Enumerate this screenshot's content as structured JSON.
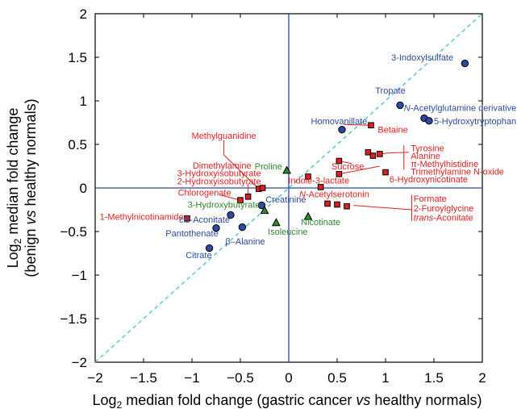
{
  "chart_data": {
    "type": "scatter",
    "title": "",
    "xlabel": {
      "prefix": "Log",
      "sub": "2",
      "main": " median fold change (gastric cancer ",
      "italic": "vs",
      "suffix": " healthy normals)"
    },
    "ylabel": {
      "line1_prefix": "Log",
      "line1_sub": "2",
      "line1_main": " median fold change",
      "line2_prefix": "(benign ",
      "line2_italic": "vs",
      "line2_suffix": " healthy normals)"
    },
    "xlim": [
      -2,
      2
    ],
    "ylim": [
      -2,
      2
    ],
    "xticks": [
      -2,
      -1.5,
      -1,
      -0.5,
      0,
      0.5,
      1,
      1.5,
      2
    ],
    "yticks": [
      -2,
      -1.5,
      -1,
      -0.5,
      0,
      0.5,
      1,
      1.5,
      2
    ],
    "xtick_labels": [
      "−2",
      "−1.5",
      "−1",
      "−0.5",
      "0",
      "0.5",
      "1",
      "1.5",
      "2"
    ],
    "ytick_labels": [
      "−2",
      "−1.5",
      "−1",
      "−0.5",
      "0",
      "0.5",
      "1",
      "1.5",
      "2"
    ],
    "colors": {
      "blue": "#2d4b9e",
      "red": "#e02020",
      "green": "#2e8b2e",
      "diag": "#55c6c6",
      "axis_line": "#2d4b9e"
    },
    "diagonal": true,
    "points": [
      {
        "x": 1.82,
        "y": 1.43,
        "marker": "circle",
        "color": "blue"
      },
      {
        "x": 1.15,
        "y": 0.95,
        "marker": "circle",
        "color": "blue"
      },
      {
        "x": 1.4,
        "y": 0.8,
        "marker": "circle",
        "color": "blue"
      },
      {
        "x": 1.45,
        "y": 0.77,
        "marker": "circle",
        "color": "blue"
      },
      {
        "x": 0.55,
        "y": 0.67,
        "marker": "circle",
        "color": "blue"
      },
      {
        "x": 0.85,
        "y": 0.72,
        "marker": "square",
        "color": "red"
      },
      {
        "x": 0.82,
        "y": 0.41,
        "marker": "square",
        "color": "red"
      },
      {
        "x": 0.87,
        "y": 0.37,
        "marker": "square",
        "color": "red"
      },
      {
        "x": 0.94,
        "y": 0.39,
        "marker": "square",
        "color": "red"
      },
      {
        "x": 0.52,
        "y": 0.31,
        "marker": "square",
        "color": "red"
      },
      {
        "x": 0.52,
        "y": 0.16,
        "marker": "square",
        "color": "red"
      },
      {
        "x": 1.0,
        "y": 0.18,
        "marker": "square",
        "color": "red"
      },
      {
        "x": 0.2,
        "y": 0.13,
        "marker": "square",
        "color": "red"
      },
      {
        "x": 0.33,
        "y": 0.01,
        "marker": "square",
        "color": "red"
      },
      {
        "x": 0.4,
        "y": -0.18,
        "marker": "square",
        "color": "red"
      },
      {
        "x": 0.5,
        "y": -0.19,
        "marker": "square",
        "color": "red"
      },
      {
        "x": 0.6,
        "y": -0.21,
        "marker": "square",
        "color": "red"
      },
      {
        "x": -0.31,
        "y": -0.01,
        "marker": "square",
        "color": "red"
      },
      {
        "x": -0.27,
        "y": -0.0,
        "marker": "square",
        "color": "red"
      },
      {
        "x": -0.42,
        "y": -0.1,
        "marker": "square",
        "color": "red"
      },
      {
        "x": -0.5,
        "y": -0.14,
        "marker": "square",
        "color": "red"
      },
      {
        "x": -1.05,
        "y": -0.35,
        "marker": "square",
        "color": "red"
      },
      {
        "x": -0.28,
        "y": -0.2,
        "marker": "circle",
        "color": "blue"
      },
      {
        "x": -0.6,
        "y": -0.31,
        "marker": "circle",
        "color": "blue"
      },
      {
        "x": -0.48,
        "y": -0.45,
        "marker": "circle",
        "color": "blue"
      },
      {
        "x": -0.75,
        "y": -0.46,
        "marker": "circle",
        "color": "blue"
      },
      {
        "x": -0.82,
        "y": -0.69,
        "marker": "circle",
        "color": "blue"
      },
      {
        "x": -0.02,
        "y": 0.2,
        "marker": "triangle",
        "color": "green"
      },
      {
        "x": -0.25,
        "y": -0.26,
        "marker": "triangle",
        "color": "green"
      },
      {
        "x": -0.13,
        "y": -0.4,
        "marker": "triangle",
        "color": "green"
      },
      {
        "x": 0.2,
        "y": -0.33,
        "marker": "triangle",
        "color": "green"
      }
    ],
    "labels": [
      {
        "text": "3-Indoxylsulfate",
        "x": 1.38,
        "y": 1.5,
        "color": "blue",
        "anchor": "middle"
      },
      {
        "text": "Tropate",
        "x": 1.05,
        "y": 1.12,
        "color": "blue",
        "anchor": "middle"
      },
      {
        "text": "N-Acetylglutamine derivative",
        "x": 1.19,
        "y": 0.92,
        "color": "blue",
        "anchor": "start"
      },
      {
        "text": "5-Hydroxytryptophan",
        "x": 1.5,
        "y": 0.77,
        "color": "blue",
        "anchor": "start"
      },
      {
        "text": "Homovanillate",
        "x": 0.52,
        "y": 0.77,
        "color": "blue",
        "anchor": "middle"
      },
      {
        "text": "Betaine",
        "x": 0.92,
        "y": 0.67,
        "color": "red",
        "anchor": "start"
      },
      {
        "text": "Methylguanidine",
        "x": -0.67,
        "y": 0.6,
        "color": "red",
        "anchor": "middle"
      },
      {
        "text": "Tyrosine",
        "x": 1.26,
        "y": 0.46,
        "color": "red",
        "anchor": "start"
      },
      {
        "text": "Alanine",
        "x": 1.26,
        "y": 0.37,
        "color": "red",
        "anchor": "start"
      },
      {
        "text": "π-Methylhistidine",
        "x": 1.26,
        "y": 0.28,
        "color": "red",
        "anchor": "start"
      },
      {
        "text": "Trimethylamine N-oxide",
        "x": 1.26,
        "y": 0.19,
        "color": "red",
        "anchor": "start"
      },
      {
        "text": "Sucrose",
        "x": 0.61,
        "y": 0.25,
        "color": "red",
        "anchor": "middle"
      },
      {
        "text": "6-Hydroxynicotinate",
        "x": 1.04,
        "y": 0.1,
        "color": "red",
        "anchor": "start"
      },
      {
        "text": "Indole-3-lactate",
        "x": 0.31,
        "y": 0.09,
        "color": "red",
        "anchor": "middle"
      },
      {
        "text": "Proline",
        "x": -0.21,
        "y": 0.25,
        "color": "green",
        "anchor": "middle"
      },
      {
        "text": "Dimethylamine",
        "x": -0.69,
        "y": 0.26,
        "color": "red",
        "anchor": "middle"
      },
      {
        "text": "3-Hydroxyisobutyrate",
        "x": -0.72,
        "y": 0.17,
        "color": "red",
        "anchor": "middle"
      },
      {
        "text": "2-Hydroxyisobutyrate",
        "x": -0.72,
        "y": 0.08,
        "color": "red",
        "anchor": "middle"
      },
      {
        "text": "Chlorogenate",
        "x": -0.87,
        "y": -0.05,
        "color": "red",
        "anchor": "middle"
      },
      {
        "text": "Creatinine",
        "x": -0.03,
        "y": -0.13,
        "color": "blue",
        "anchor": "middle"
      },
      {
        "text": "N-Acetylserotonin",
        "x": 0.47,
        "y": -0.07,
        "color": "red",
        "anchor": "middle"
      },
      {
        "text": "Formate",
        "x": 1.29,
        "y": -0.12,
        "color": "red",
        "anchor": "start"
      },
      {
        "text": "2-Furoylglycine",
        "x": 1.29,
        "y": -0.23,
        "color": "red",
        "anchor": "start"
      },
      {
        "text": "trans-Aconitate",
        "x": 1.29,
        "y": -0.34,
        "color": "red",
        "anchor": "start"
      },
      {
        "text": "3-Hydroxybutyrate",
        "x": -0.67,
        "y": -0.19,
        "color": "green",
        "anchor": "middle"
      },
      {
        "text": "1-Methylnicotinamide",
        "x": -1.52,
        "y": -0.33,
        "color": "red",
        "anchor": "middle"
      },
      {
        "text": "cis-Aconitate",
        "x": -0.87,
        "y": -0.36,
        "color": "blue",
        "anchor": "middle"
      },
      {
        "text": "Nicotinate",
        "x": 0.33,
        "y": -0.39,
        "color": "green",
        "anchor": "middle"
      },
      {
        "text": "Isoleucine",
        "x": -0.01,
        "y": -0.5,
        "color": "green",
        "anchor": "middle"
      },
      {
        "text": "Pantothenate",
        "x": -1.0,
        "y": -0.52,
        "color": "blue",
        "anchor": "middle"
      },
      {
        "text": "β–Alanine",
        "x": -0.45,
        "y": -0.61,
        "color": "blue",
        "anchor": "middle"
      },
      {
        "text": "Citrate",
        "x": -0.93,
        "y": -0.77,
        "color": "blue",
        "anchor": "middle"
      }
    ],
    "leaders": [
      {
        "color": "red",
        "pts": [
          [
            0.57,
            0.73
          ],
          [
            0.82,
            0.72
          ]
        ]
      },
      {
        "color": "red",
        "pts": [
          [
            0.65,
            0.28
          ],
          [
            0.52,
            0.31
          ]
        ]
      },
      {
        "color": "red",
        "pts": [
          [
            0.52,
            0.16
          ],
          [
            0.94,
            0.25
          ]
        ]
      },
      {
        "color": "red",
        "pts": [
          [
            0.94,
            0.39
          ],
          [
            1.02,
            0.4
          ],
          [
            1.24,
            0.41
          ]
        ]
      },
      {
        "color": "red",
        "pts": [
          [
            1.19,
            0.49
          ],
          [
            1.19,
            0.21
          ]
        ]
      },
      {
        "color": "red",
        "pts": [
          [
            0.67,
            -0.2
          ],
          [
            1.27,
            -0.25
          ]
        ]
      },
      {
        "color": "red",
        "pts": [
          [
            1.27,
            -0.08
          ],
          [
            1.27,
            -0.38
          ]
        ]
      },
      {
        "color": "red",
        "pts": [
          [
            -0.67,
            0.55
          ],
          [
            -0.67,
            0.38
          ],
          [
            -0.31,
            -0.01
          ]
        ]
      },
      {
        "color": "red",
        "pts": [
          [
            -0.42,
            0.05
          ],
          [
            -0.42,
            -0.1
          ]
        ]
      },
      {
        "color": "red",
        "pts": [
          [
            -0.71,
            -0.08
          ],
          [
            -0.5,
            -0.14
          ]
        ]
      }
    ]
  }
}
